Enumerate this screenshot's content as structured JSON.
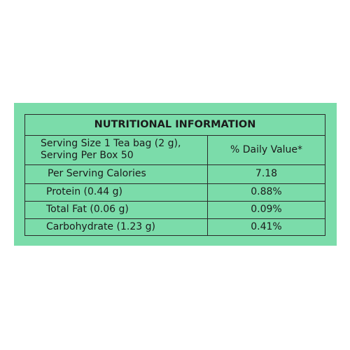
{
  "table": {
    "title": "NUTRITIONAL INFORMATION",
    "header": [
      [
        "Serving Size 1 Tea bag (2 g),",
        "Serving Per Box 50"
      ],
      "% Daily Value*"
    ],
    "rows": [
      [
        "Per Serving Calories",
        "7.18"
      ],
      [
        "Protein (0.44 g)",
        "0.88%"
      ],
      [
        "Total Fat (0.06 g)",
        "0.09%"
      ],
      [
        "Carbohydrate (1.23 g)",
        "0.41%"
      ]
    ]
  }
}
